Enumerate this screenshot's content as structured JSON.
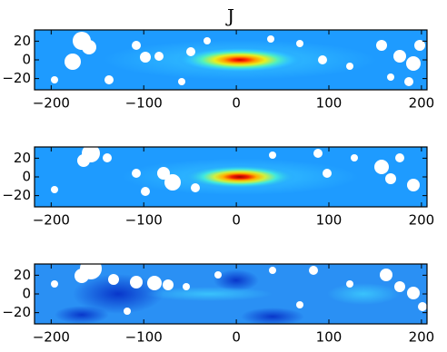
{
  "chart_data": [
    {
      "type": "image",
      "title": "J",
      "xlim": [
        -218,
        206
      ],
      "ylim": [
        -32,
        32
      ],
      "xticks": [
        {
          "value": -200,
          "label": "−200"
        },
        {
          "value": -100,
          "label": "−100"
        },
        0,
        100,
        200
      ],
      "yticks": [
        20,
        0,
        {
          "value": -20,
          "label": "−20"
        }
      ]
    },
    {
      "type": "image",
      "xlim": [
        -218,
        206
      ],
      "ylim": [
        -32,
        32
      ],
      "xticks": [
        {
          "value": -200,
          "label": "−200"
        },
        {
          "value": -100,
          "label": "−100"
        },
        0,
        100,
        200
      ],
      "yticks": [
        20,
        0,
        {
          "value": -20,
          "label": "−20"
        }
      ]
    },
    {
      "type": "image",
      "xlim": [
        -218,
        206
      ],
      "ylim": [
        -32,
        32
      ],
      "xticks": [
        {
          "value": -200,
          "label": "−200"
        },
        {
          "value": -100,
          "label": "−100"
        },
        0,
        100,
        200
      ],
      "yticks": [
        20,
        0,
        {
          "value": -20,
          "label": "−20"
        }
      ]
    }
  ]
}
